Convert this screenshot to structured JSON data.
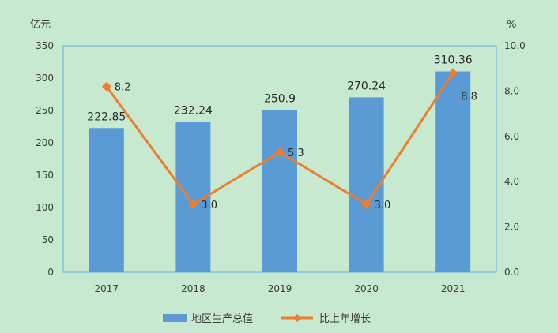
{
  "chart_data": {
    "type": "bar",
    "categories": [
      "2017",
      "2018",
      "2019",
      "2020",
      "2021"
    ],
    "series": [
      {
        "name": "地区生产总值",
        "type": "bar",
        "axis": "left",
        "values": [
          222.85,
          232.24,
          250.9,
          270.24,
          310.36
        ],
        "labels": [
          "222.85",
          "232.24",
          "250.9",
          "270.24",
          "310.36"
        ],
        "color": "#5b9bd5"
      },
      {
        "name": "比上年增长",
        "type": "line",
        "axis": "right",
        "values": [
          8.2,
          3.0,
          5.3,
          3.0,
          8.8
        ],
        "labels": [
          "8.2",
          "3.0",
          "5.3",
          "3.0",
          "8.8"
        ],
        "color": "#ed7d31"
      }
    ],
    "yleft": {
      "unit": "亿元",
      "ylim": [
        0,
        350
      ],
      "ticks": [
        "0",
        "50",
        "100",
        "150",
        "200",
        "250",
        "300",
        "350"
      ]
    },
    "yright": {
      "unit": "%",
      "ylim": [
        0,
        10
      ],
      "ticks": [
        "0.0",
        "2.0",
        "4.0",
        "6.0",
        "8.0",
        "10.0"
      ]
    },
    "grid": false,
    "legend_position": "bottom"
  }
}
